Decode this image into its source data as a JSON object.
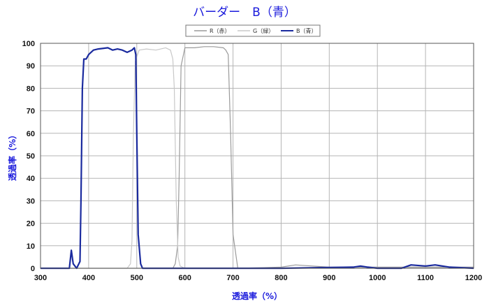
{
  "title": "バーダー　B（青）",
  "colors": {
    "red_channel": "#9a9a9a",
    "green_channel": "#c8c8c8",
    "blue_channel": "#1a2a9e",
    "title": "#1a1adc",
    "grid": "#b5b5b5",
    "frame": "#555555"
  },
  "chart_data": {
    "type": "line",
    "title": "バーダー　B（青）",
    "xlabel": "透過率（%）",
    "ylabel": "透過率（%）",
    "xlim": [
      300,
      1200
    ],
    "ylim": [
      0,
      100
    ],
    "x_ticks": [
      "300",
      "400",
      "500",
      "600",
      "700",
      "800",
      "900",
      "1000",
      "1100",
      "1200"
    ],
    "y_ticks": [
      "0",
      "10",
      "20",
      "30",
      "40",
      "50",
      "60",
      "70",
      "80",
      "90",
      "100"
    ],
    "grid": true,
    "legend_position": "top-center",
    "series": [
      {
        "name": "R（赤）",
        "color": "#9a9a9a",
        "x": [
          300,
          560,
          575,
          580,
          585,
          588,
          592,
          600,
          620,
          640,
          660,
          680,
          685,
          690,
          695,
          700,
          710,
          800,
          830,
          900,
          1000,
          1100,
          1200
        ],
        "y": [
          0,
          0,
          0,
          2,
          10,
          40,
          90,
          98,
          98,
          98.5,
          98.5,
          98,
          97,
          95,
          60,
          15,
          0,
          0.5,
          1.5,
          0.5,
          0.5,
          0.5,
          0.5
        ]
      },
      {
        "name": "G（緑）",
        "color": "#c8c8c8",
        "x": [
          300,
          480,
          487,
          490,
          493,
          497,
          505,
          520,
          540,
          560,
          570,
          575,
          578,
          582,
          586,
          590,
          600,
          700,
          800,
          900,
          1000,
          1100,
          1200
        ],
        "y": [
          0,
          0,
          2,
          12,
          60,
          92,
          97,
          97.5,
          97,
          98,
          97,
          93,
          80,
          30,
          5,
          1,
          0,
          0,
          0,
          0,
          0,
          0,
          0
        ]
      },
      {
        "name": "B（青）",
        "color": "#1a2a9e",
        "x": [
          300,
          360,
          364,
          368,
          375,
          382,
          384,
          387,
          390,
          395,
          400,
          410,
          420,
          440,
          450,
          460,
          470,
          480,
          490,
          495,
          498,
          500,
          503,
          508,
          512,
          520,
          600,
          700,
          800,
          950,
          965,
          980,
          1000,
          1050,
          1070,
          1100,
          1120,
          1150,
          1200
        ],
        "y": [
          0,
          0,
          8,
          2,
          0,
          3,
          30,
          80,
          93,
          93,
          95,
          97,
          97.5,
          98,
          97,
          97.5,
          97,
          96,
          97,
          98,
          95,
          60,
          15,
          2,
          0,
          0,
          0,
          0,
          0,
          0.5,
          1,
          0.5,
          0,
          0,
          1.5,
          1,
          1.5,
          0.5,
          0
        ]
      }
    ]
  }
}
